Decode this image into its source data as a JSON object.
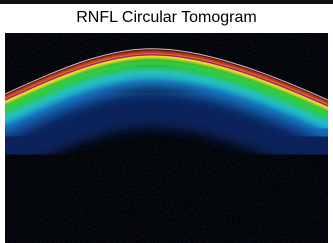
{
  "header": {
    "title": "RNFL Circular Tomogram"
  }
}
